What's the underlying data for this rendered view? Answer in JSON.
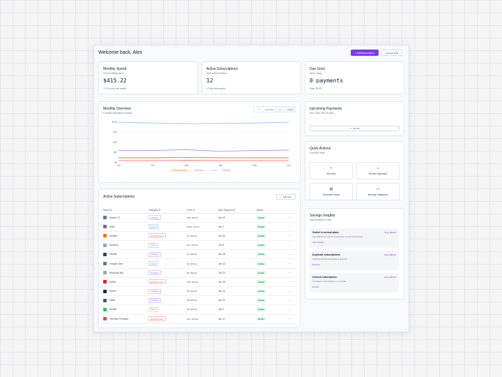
{
  "header": {
    "welcome": "Welcome back, Alex",
    "add_label": "Add Subscription",
    "export_label": "Export Data"
  },
  "stats": [
    {
      "title": "Monthly Spend",
      "subtitle": "Current billing cycle",
      "value": "$415.22",
      "note": "+2.1% from last month"
    },
    {
      "title": "Active Subscriptions",
      "subtitle": "Total active services",
      "value": "12",
      "note": "+0 new this month"
    },
    {
      "title": "Due Soon",
      "subtitle": "Next 7 days",
      "value": "0 payments",
      "note": "Total: $0.00"
    }
  ],
  "overview": {
    "title": "Monthly Overview",
    "subtitle": "6-month subscription history",
    "toggle": [
      "Spending",
      "Usage"
    ]
  },
  "chart_data": {
    "type": "line",
    "x": [
      "Jan",
      "Feb",
      "Mar",
      "Apr",
      "May",
      "Jun"
    ],
    "y_ticks": [
      "$0",
      "$25",
      "$50",
      "$75",
      "$100"
    ],
    "ylim": [
      0,
      100
    ],
    "series": [
      {
        "name": "Entertainment",
        "color": "#f97316",
        "values": [
          12,
          12,
          13,
          12,
          12,
          12
        ]
      },
      {
        "name": "Software",
        "color": "#a78bfa",
        "values": [
          30,
          30,
          32,
          28,
          30,
          31
        ]
      },
      {
        "name": "Cloud",
        "color": "#93c5fd",
        "values": [
          100,
          98,
          96,
          97,
          98,
          100
        ]
      },
      {
        "name": "Media",
        "color": "#f87171",
        "values": [
          5,
          5,
          6,
          5,
          5,
          5
        ]
      }
    ]
  },
  "active": {
    "title": "Active Subscriptions",
    "add_new": "Add New",
    "columns": [
      "Name",
      "Category",
      "Price",
      "Next Payment",
      "Status"
    ],
    "rows": [
      {
        "name": "Adobe CC",
        "category": "Software",
        "price": "$52.99/mo",
        "next": "Jun 10",
        "status": "Active",
        "logo": "#64748b"
      },
      {
        "name": "AWS",
        "category": "Cloud",
        "price": "$257.36/mo",
        "next": "Jun 3",
        "status": "Active",
        "logo": "#6b7280"
      },
      {
        "name": "Disney+",
        "category": "Entertainment",
        "price": "$7.99/mo",
        "next": "Jun 30",
        "status": "Active",
        "logo": "#f97316"
      },
      {
        "name": "Dropbox",
        "category": "Cloud",
        "price": "$11.99/mo",
        "next": "Jun 8",
        "status": "Active",
        "logo": "#9ca3af"
      },
      {
        "name": "GitHub",
        "category": "Software",
        "price": "$7.00/mo",
        "next": "Jun 18",
        "status": "Active",
        "logo": "#374151"
      },
      {
        "name": "Google Drive",
        "category": "Cloud",
        "price": "$5.99/mo",
        "next": "Jun 12",
        "status": "Active",
        "logo": "#6b7280"
      },
      {
        "name": "Microsoft 365",
        "category": "Software",
        "price": "$6.99/mo",
        "next": "Jun 22",
        "status": "Active",
        "logo": "#9ca3af"
      },
      {
        "name": "Netflix",
        "category": "Entertainment",
        "price": "$19.99/mo",
        "next": "Jun 15",
        "status": "Active",
        "logo": "#dc2626"
      },
      {
        "name": "Notion",
        "category": "Software",
        "price": "$8.00/mo",
        "next": "Jun 14",
        "status": "Active",
        "logo": "#1f2937"
      },
      {
        "name": "Slack",
        "category": "Software",
        "price": "$8.00/mo",
        "next": "Jun 20",
        "status": "Active",
        "logo": "#4b5563"
      },
      {
        "name": "Spotify",
        "category": "Media",
        "price": "$9.99/mo",
        "next": "Jun 1",
        "status": "Active",
        "logo": "#22c55e"
      },
      {
        "name": "YouTube Premium",
        "category": "Entertainment",
        "price": "$11.99/mo",
        "next": "Jun 17",
        "status": "Active",
        "logo": "#ef4444"
      }
    ]
  },
  "category_colors": {
    "Software": "#8b5cf6",
    "Cloud": "#3b82f6",
    "Entertainment": "#ef4444",
    "Media": "#f97316"
  },
  "upcoming": {
    "title": "Upcoming Payments",
    "subtitle": "Due in the next 30 days",
    "pay_all": "Pay All"
  },
  "quick": {
    "title": "Quick Actions",
    "subtitle": "Common tasks",
    "actions": [
      {
        "label": "Add New",
        "icon": "+"
      },
      {
        "label": "Review Expenses",
        "icon": "⊥"
      },
      {
        "label": "Generate Report",
        "icon": "▤"
      },
      {
        "label": "Manage Categories",
        "icon": "▭"
      }
    ]
  },
  "insights": {
    "title": "Savings Insights",
    "subtitle": "Opportunities to save",
    "items": [
      {
        "title": "Switch to annual plans",
        "save": "Save $58.00",
        "desc": "Save $58.00 per year by switching to annual subscriptions",
        "link": "View Details"
      },
      {
        "title": "Duplicate subscriptions",
        "save": "Save $99.00",
        "desc": "Duplicate Spotify subscriptions detected",
        "link": "Resolve"
      },
      {
        "title": "Unused subscription",
        "save": "Save $99.00",
        "desc": "You haven't used Dropbox in 3 months",
        "link": "Cancel"
      }
    ]
  }
}
